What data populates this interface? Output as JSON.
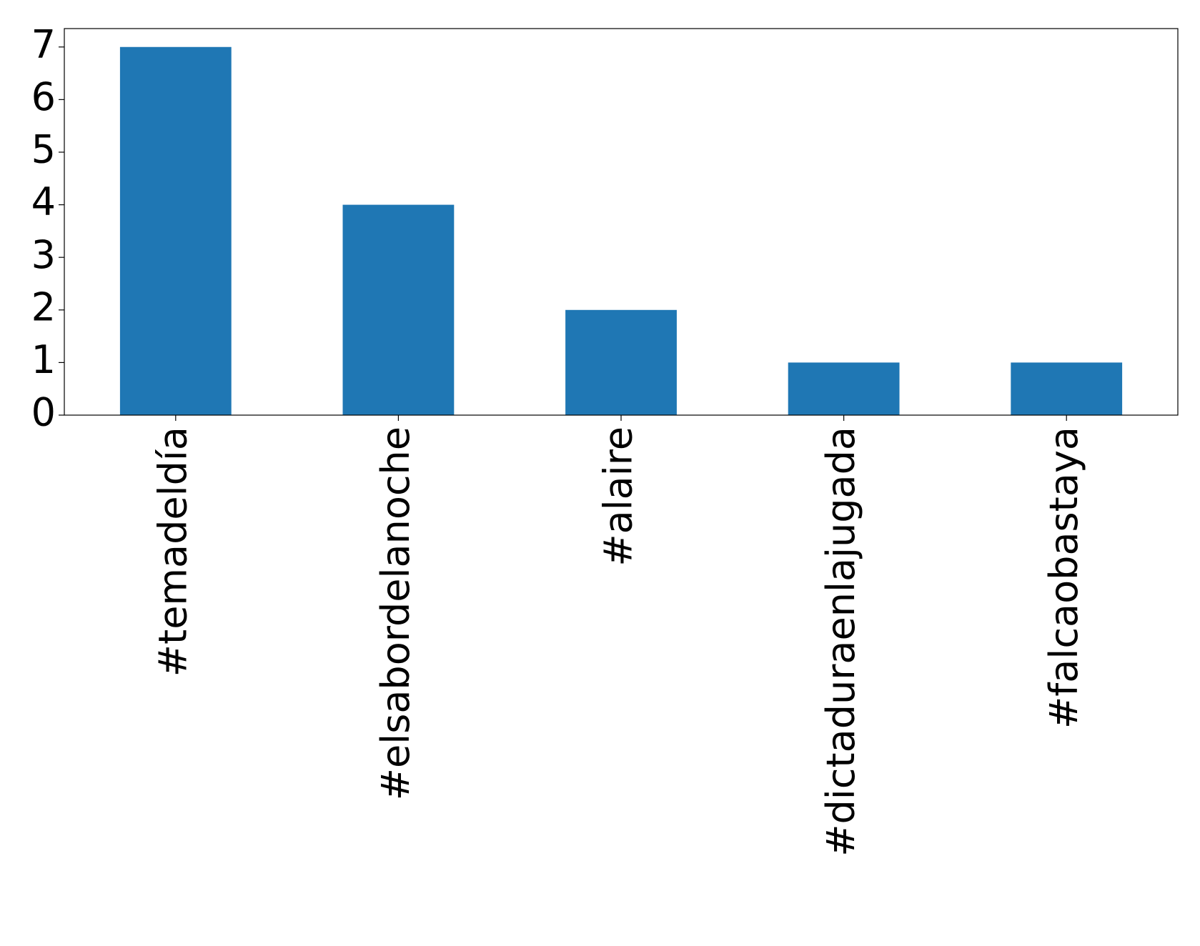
{
  "chart_data": {
    "type": "bar",
    "categories": [
      "#temadeldía",
      "#elsabordelanoche",
      "#alaire",
      "#dictaduraenlajugada",
      "#falcaobastaya"
    ],
    "values": [
      7,
      4,
      2,
      1,
      1
    ],
    "color": "#1f77b4",
    "ylim": [
      0,
      7.35
    ],
    "yticks": [
      0,
      1,
      2,
      3,
      4,
      5,
      6,
      7
    ]
  }
}
